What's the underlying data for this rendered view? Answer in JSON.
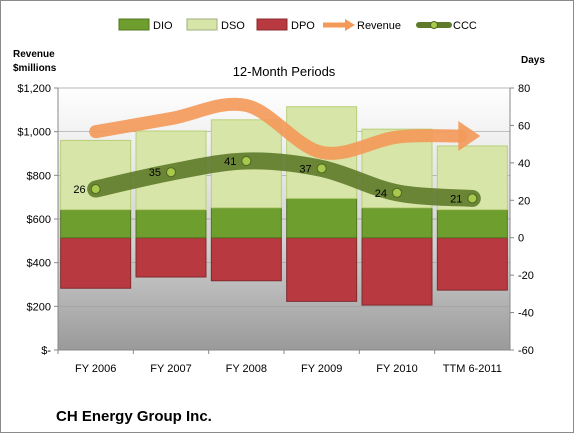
{
  "chart_data": {
    "type": "bar",
    "title": "12-Month Periods",
    "company": "CH Energy Group Inc.",
    "y_left_label": [
      "Revenue",
      "$millions"
    ],
    "y_right_label": "Days",
    "categories": [
      "FY 2006",
      "FY 2007",
      "FY 2008",
      "FY 2009",
      "FY 2010",
      "TTM 6-2011"
    ],
    "y_left_ticks": [
      "$-",
      "$200",
      "$400",
      "$600",
      "$800",
      "$1,000",
      "$1,200"
    ],
    "y_left_range": [
      0,
      1200
    ],
    "y_right_ticks": [
      "-60",
      "-40",
      "-20",
      "0",
      "20",
      "40",
      "60",
      "80"
    ],
    "y_right_range": [
      -60,
      80
    ],
    "legend": [
      "DIO",
      "DSO",
      "DPO",
      "Revenue",
      "CCC"
    ],
    "legend_position": "top",
    "series": [
      {
        "name": "DIO",
        "axis": "right",
        "color": "#6e9e2e",
        "values": [
          15,
          15,
          16,
          21,
          16,
          15
        ]
      },
      {
        "name": "DSO",
        "axis": "right",
        "color": "#d7e6a8",
        "values": [
          37,
          42,
          47,
          49,
          42,
          34
        ]
      },
      {
        "name": "DPO",
        "axis": "right",
        "color": "#b83a40",
        "values": [
          -27,
          -21,
          -23,
          -34,
          -36,
          -28
        ]
      },
      {
        "name": "Revenue",
        "axis": "left",
        "color": "#f39a5a",
        "values": [
          1000,
          1060,
          1120,
          905,
          975,
          980
        ]
      },
      {
        "name": "CCC",
        "axis": "right",
        "color": "#5f7a2a",
        "values": [
          26,
          35,
          41,
          37,
          24,
          21
        ]
      }
    ],
    "ccc_labels": [
      "26",
      "35",
      "41",
      "37",
      "24",
      "21"
    ]
  }
}
